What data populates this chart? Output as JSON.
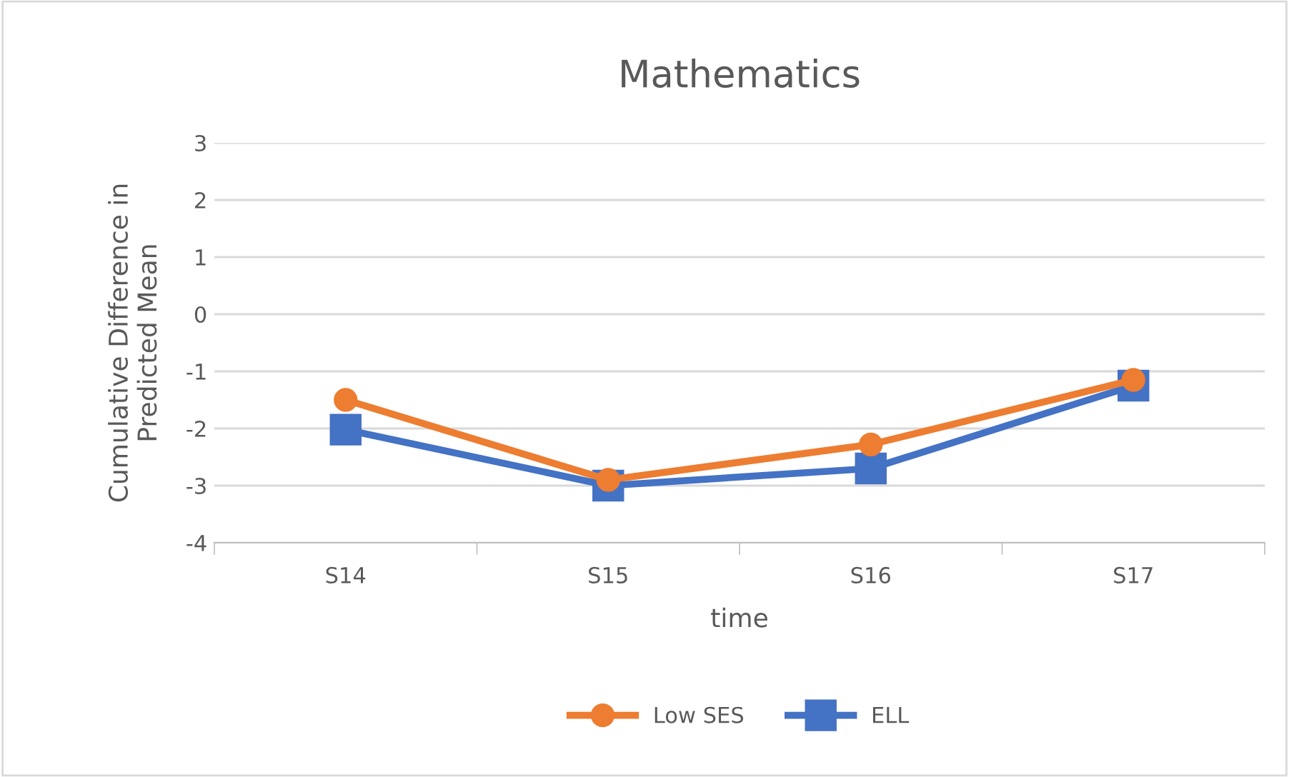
{
  "chart_data": {
    "type": "line",
    "title": "Mathematics",
    "xlabel": "time",
    "ylabel": "Cumulative Difference in\nPredicted Mean",
    "categories": [
      "S14",
      "S15",
      "S16",
      "S17"
    ],
    "series": [
      {
        "name": "Low SES",
        "color": "#ed7d31",
        "values": [
          -1.5,
          -2.9,
          -2.28,
          -1.15
        ],
        "marker": "circle"
      },
      {
        "name": "ELL",
        "color": "#4472c4",
        "values": [
          -2.02,
          -3.0,
          -2.7,
          -1.25
        ],
        "marker": "square"
      }
    ],
    "ylim": [
      -4,
      3
    ],
    "yticks": [
      -4,
      -3,
      -2,
      -1,
      0,
      1,
      2,
      3
    ],
    "grid": "y",
    "legend": "bottom",
    "line_style": "solid"
  }
}
